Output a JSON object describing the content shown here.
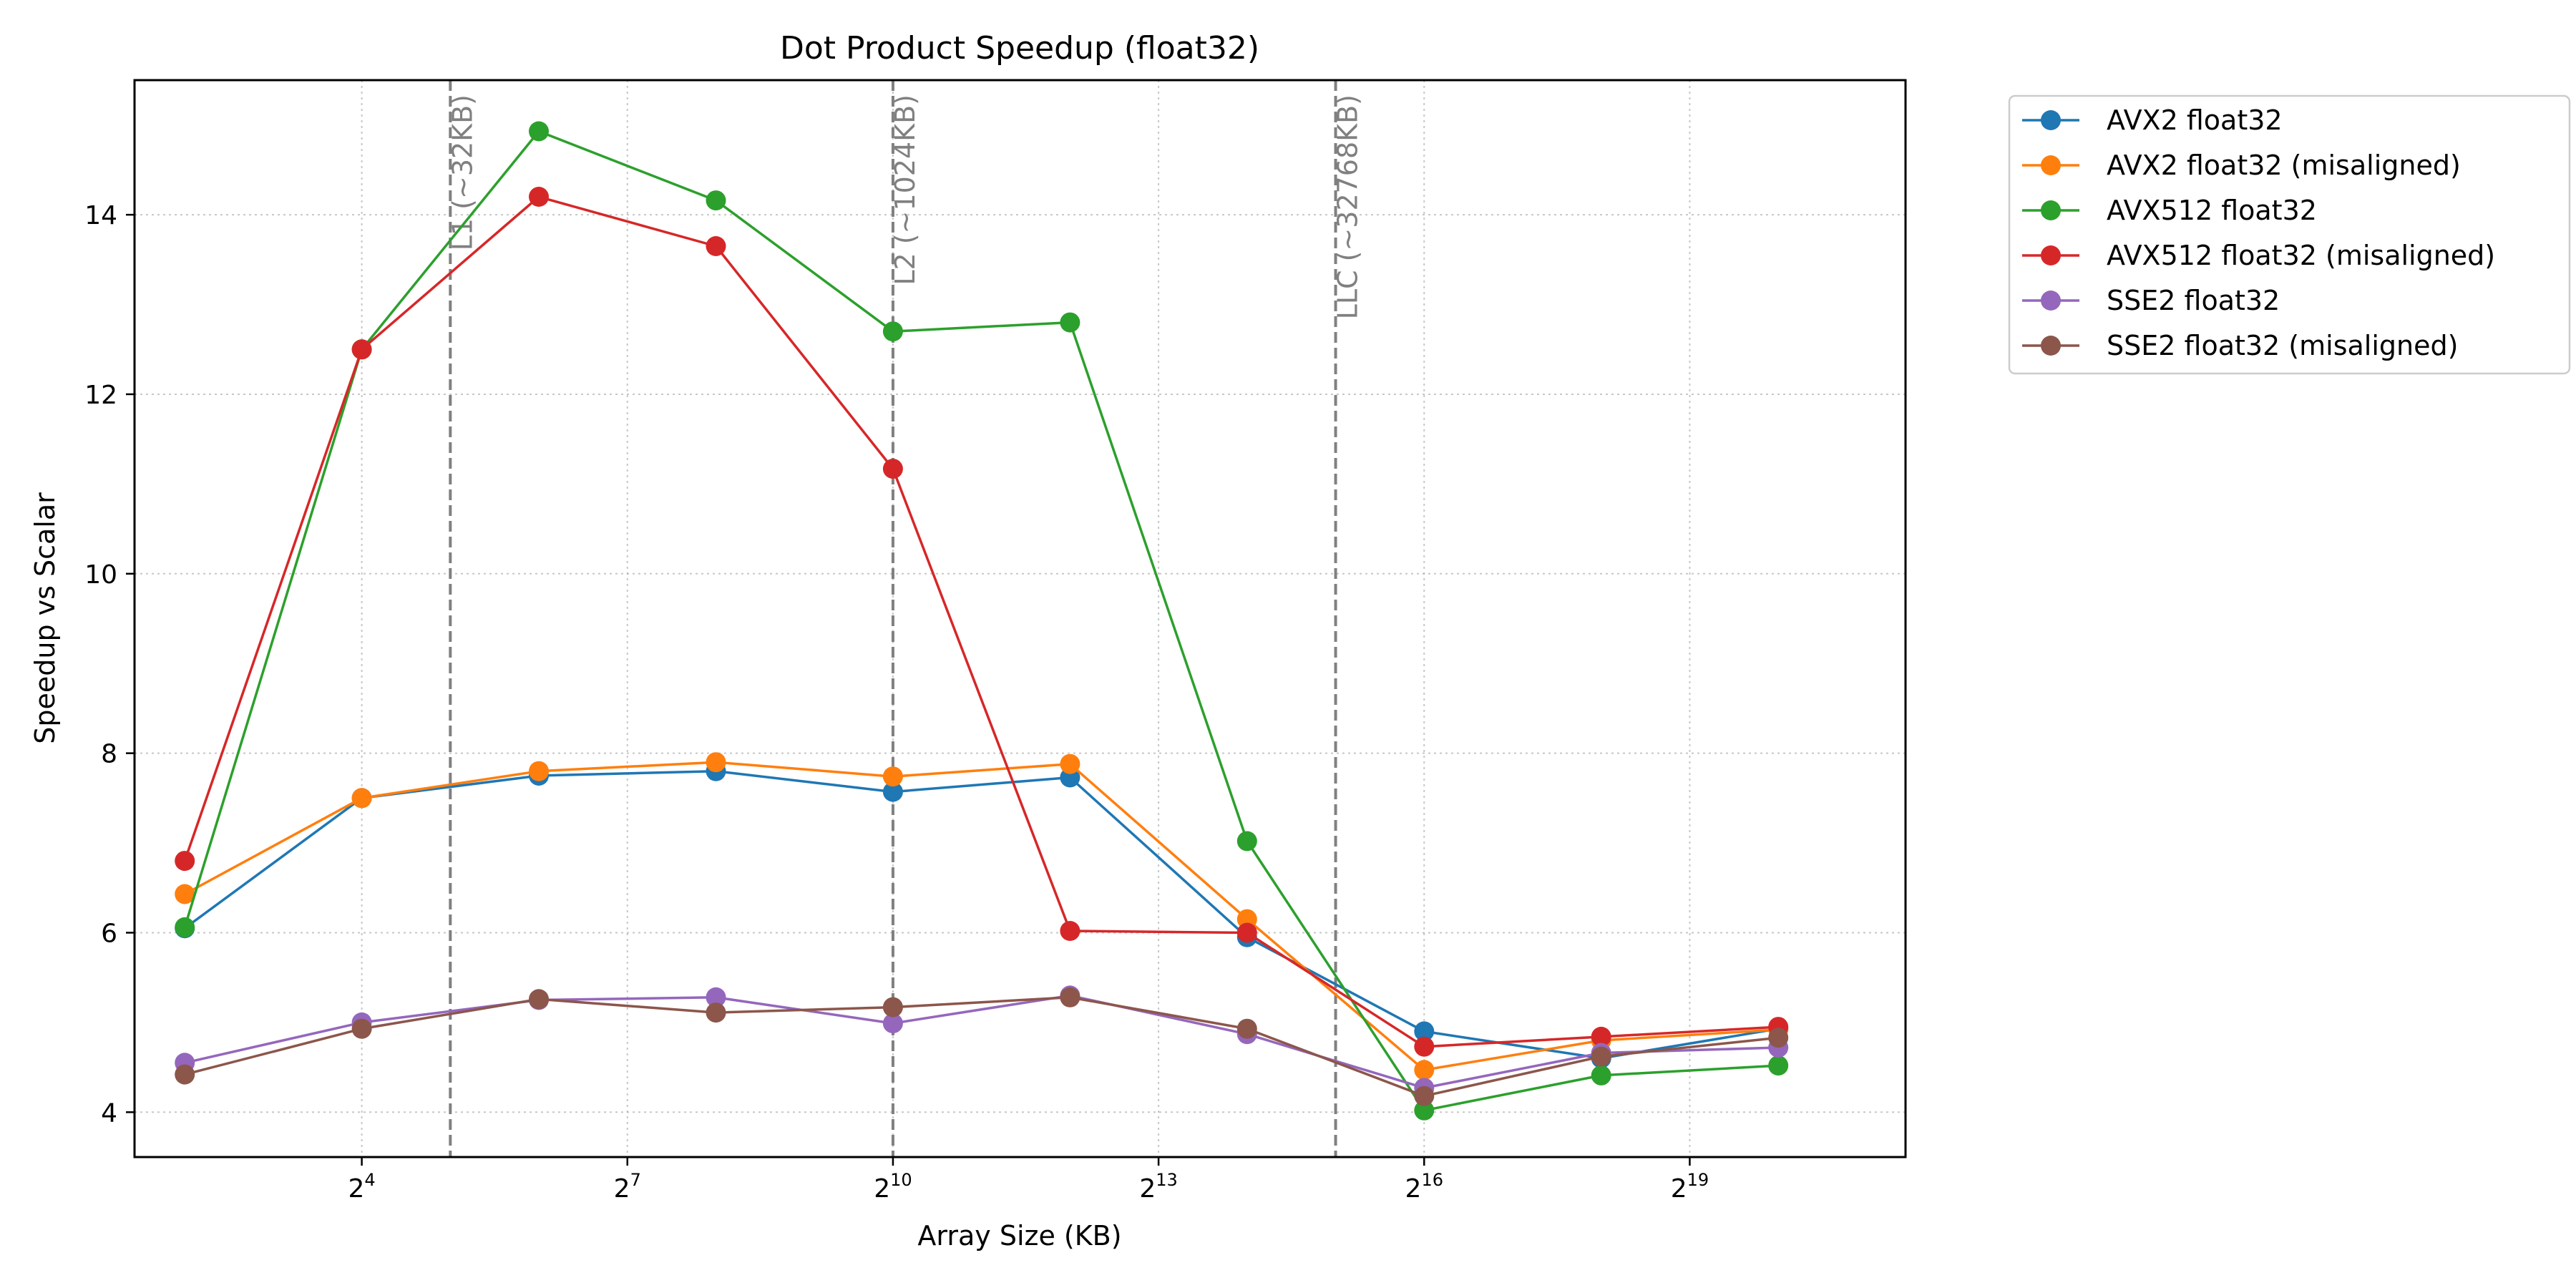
{
  "chart_data": {
    "type": "line",
    "title": "Dot Product Speedup (float32)",
    "xlabel": "Array Size (KB)",
    "ylabel": "Speedup vs Scalar",
    "x_scale": "log2",
    "x": [
      4,
      16,
      64,
      256,
      1024,
      4096,
      16384,
      65536,
      262144,
      1048576
    ],
    "xlim": [
      2.7,
      2840000
    ],
    "xticks": [
      {
        "value": 16,
        "base": "2",
        "exp": "4"
      },
      {
        "value": 128,
        "base": "2",
        "exp": "7"
      },
      {
        "value": 1024,
        "base": "2",
        "exp": "10"
      },
      {
        "value": 8192,
        "base": "2",
        "exp": "13"
      },
      {
        "value": 65536,
        "base": "2",
        "exp": "16"
      },
      {
        "value": 524288,
        "base": "2",
        "exp": "19"
      }
    ],
    "ylim": [
      3.5,
      15.5
    ],
    "yticks": [
      4,
      6,
      8,
      10,
      12,
      14
    ],
    "grid": true,
    "legend_position": "outside-top-right",
    "series": [
      {
        "name": "AVX2 float32",
        "color": "#1f77b4",
        "values": [
          6.05,
          7.5,
          7.75,
          7.8,
          7.57,
          7.73,
          5.95,
          4.9,
          4.6,
          4.93
        ]
      },
      {
        "name": "AVX2 float32 (misaligned)",
        "color": "#ff7f0e",
        "values": [
          6.43,
          7.5,
          7.8,
          7.9,
          7.74,
          7.88,
          6.15,
          4.47,
          4.8,
          4.92
        ]
      },
      {
        "name": "AVX512 float32",
        "color": "#2ca02c",
        "values": [
          6.06,
          12.5,
          14.93,
          14.16,
          12.7,
          12.8,
          7.02,
          4.02,
          4.41,
          4.52
        ]
      },
      {
        "name": "AVX512 float32 (misaligned)",
        "color": "#d62728",
        "values": [
          6.8,
          12.5,
          14.2,
          13.65,
          11.17,
          6.02,
          6.0,
          4.73,
          4.84,
          4.95
        ]
      },
      {
        "name": "SSE2 float32",
        "color": "#9467bd",
        "values": [
          4.55,
          5.0,
          5.25,
          5.28,
          4.99,
          5.3,
          4.87,
          4.27,
          4.66,
          4.72
        ]
      },
      {
        "name": "SSE2 float32 (misaligned)",
        "color": "#8c564b",
        "values": [
          4.42,
          4.93,
          5.26,
          5.11,
          5.17,
          5.28,
          4.93,
          4.18,
          4.62,
          4.83
        ]
      }
    ],
    "vlines": [
      {
        "value": 32,
        "label": "L1 (~32KB)"
      },
      {
        "value": 1024,
        "label": "L2 (~1024KB)"
      },
      {
        "value": 32768,
        "label": "LLC (~32768KB)"
      }
    ]
  }
}
